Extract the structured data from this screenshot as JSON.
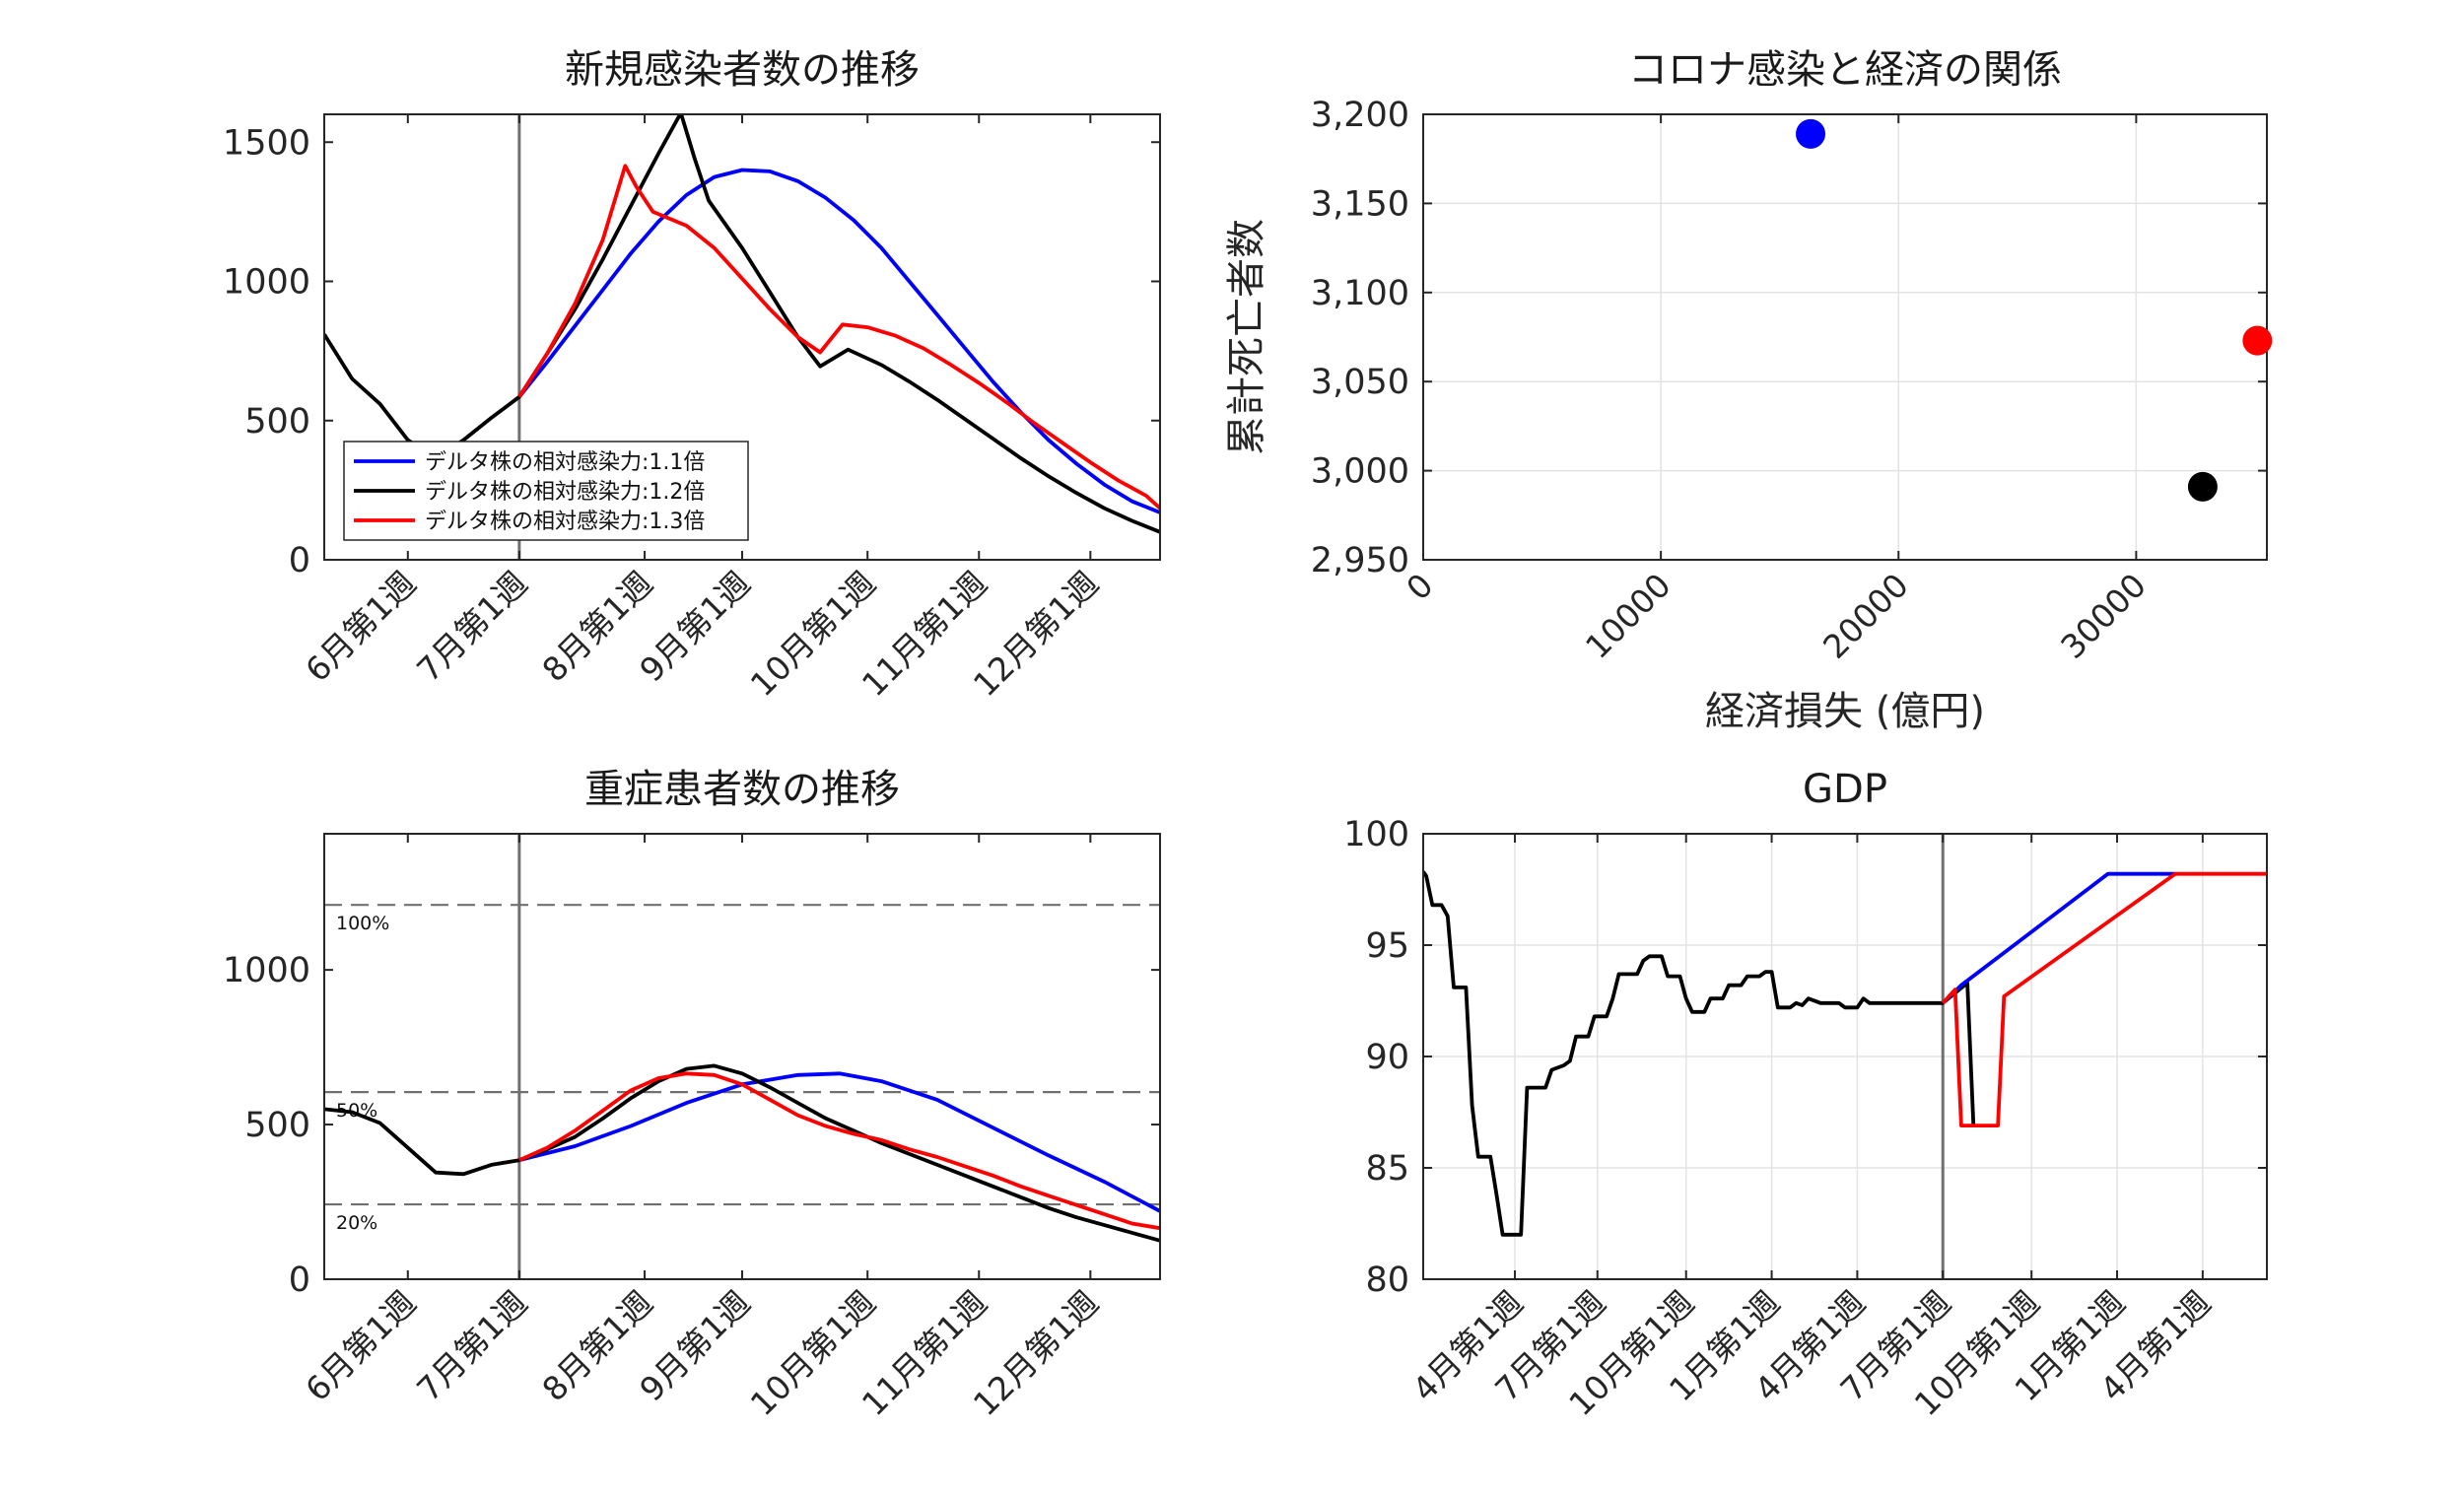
{
  "colors": {
    "blue": "#0000ff",
    "black": "#000000",
    "red": "#ff0000",
    "axis": "#262626",
    "guide": "#707070"
  },
  "chart_data": [
    {
      "type": "line",
      "title": "新規感染者数の推移",
      "xlabel": "",
      "ylabel": "",
      "week_axis": [
        0,
        30
      ],
      "ylim": [
        0,
        1600
      ],
      "yticks": [
        0,
        500,
        1000,
        1500
      ],
      "ytick_labels": [
        "0",
        "500",
        "1000",
        "1500"
      ],
      "xticks": [
        {
          "week": 3,
          "label": "6月第1週"
        },
        {
          "week": 7,
          "label": "7月第1週"
        },
        {
          "week": 11.5,
          "label": "8月第1週"
        },
        {
          "week": 15,
          "label": "9月第1週"
        },
        {
          "week": 19.5,
          "label": "10月第1週"
        },
        {
          "week": 23.5,
          "label": "11月第1週"
        },
        {
          "week": 27.5,
          "label": "12月第1週"
        }
      ],
      "vline_week": 7,
      "grid": false,
      "legend_position": "bottom-left",
      "series": [
        {
          "name": "デルタ株の相対感染力:1.1倍",
          "color": "blue",
          "points": [
            [
              7,
              585
            ],
            [
              8,
              710
            ],
            [
              9,
              840
            ],
            [
              10,
              970
            ],
            [
              11,
              1100
            ],
            [
              12,
              1215
            ],
            [
              13,
              1310
            ],
            [
              14,
              1375
            ],
            [
              15,
              1400
            ],
            [
              16,
              1395
            ],
            [
              17,
              1360
            ],
            [
              18,
              1300
            ],
            [
              19,
              1220
            ],
            [
              20,
              1120
            ],
            [
              21,
              1000
            ],
            [
              22,
              880
            ],
            [
              23,
              760
            ],
            [
              24,
              640
            ],
            [
              25,
              530
            ],
            [
              26,
              430
            ],
            [
              27,
              345
            ],
            [
              28,
              270
            ],
            [
              29,
              210
            ],
            [
              30,
              170
            ]
          ]
        },
        {
          "name": "デルタ株の相対感染力:1.2倍",
          "color": "black",
          "points": [
            [
              0,
              810
            ],
            [
              1,
              650
            ],
            [
              2,
              560
            ],
            [
              3,
              430
            ],
            [
              4,
              365
            ],
            [
              5,
              430
            ],
            [
              6,
              510
            ],
            [
              7,
              585
            ],
            [
              8,
              740
            ],
            [
              9,
              900
            ],
            [
              10,
              1080
            ],
            [
              11,
              1270
            ],
            [
              12,
              1460
            ],
            [
              12.8,
              1605
            ],
            [
              13.3,
              1440
            ],
            [
              13.8,
              1290
            ],
            [
              15,
              1120
            ],
            [
              16,
              960
            ],
            [
              17,
              800
            ],
            [
              17.8,
              695
            ],
            [
              18.8,
              755
            ],
            [
              20,
              700
            ],
            [
              21,
              640
            ],
            [
              22,
              575
            ],
            [
              23,
              505
            ],
            [
              24,
              435
            ],
            [
              25,
              365
            ],
            [
              26,
              300
            ],
            [
              27,
              240
            ],
            [
              28,
              185
            ],
            [
              29,
              140
            ],
            [
              30,
              100
            ]
          ]
        },
        {
          "name": "デルタ株の相対感染力:1.3倍",
          "color": "red",
          "points": [
            [
              7,
              585
            ],
            [
              8,
              740
            ],
            [
              9,
              920
            ],
            [
              10,
              1150
            ],
            [
              10.8,
              1415
            ],
            [
              11.2,
              1340
            ],
            [
              11.8,
              1250
            ],
            [
              13,
              1200
            ],
            [
              14,
              1120
            ],
            [
              15,
              1010
            ],
            [
              16,
              900
            ],
            [
              17,
              800
            ],
            [
              17.8,
              745
            ],
            [
              18.6,
              845
            ],
            [
              19.5,
              835
            ],
            [
              20.5,
              805
            ],
            [
              21.5,
              760
            ],
            [
              22.5,
              700
            ],
            [
              23.5,
              635
            ],
            [
              24.5,
              565
            ],
            [
              25.5,
              490
            ],
            [
              26.5,
              420
            ],
            [
              27.5,
              350
            ],
            [
              28.5,
              285
            ],
            [
              29.5,
              230
            ],
            [
              30,
              185
            ]
          ]
        }
      ]
    },
    {
      "type": "scatter",
      "title": "コロナ感染と経済の関係",
      "xlabel": "経済損失 (億円)",
      "ylabel": "累計死亡者数",
      "xlim": [
        0,
        35500
      ],
      "ylim": [
        2950,
        3200
      ],
      "xticks": [
        0,
        10000,
        20000,
        30000
      ],
      "xtick_labels": [
        "0",
        "10000",
        "20000",
        "30000"
      ],
      "yticks": [
        2950,
        3000,
        3050,
        3100,
        3150,
        3200
      ],
      "ytick_labels": [
        "2,950",
        "3,000",
        "3,050",
        "3,100",
        "3,150",
        "3,200"
      ],
      "grid": true,
      "points": [
        {
          "x": 16300,
          "y": 3189,
          "color": "blue"
        },
        {
          "x": 35100,
          "y": 3073,
          "color": "red"
        },
        {
          "x": 32800,
          "y": 2991,
          "color": "black"
        }
      ]
    },
    {
      "type": "line",
      "title": "重症患者数の推移",
      "xlabel": "",
      "ylabel": "",
      "week_axis": [
        0,
        30
      ],
      "ylim": [
        0,
        1440
      ],
      "yticks": [
        0,
        500,
        1000
      ],
      "ytick_labels": [
        "0",
        "500",
        "1000"
      ],
      "xticks": [
        {
          "week": 3,
          "label": "6月第1週"
        },
        {
          "week": 7,
          "label": "7月第1週"
        },
        {
          "week": 11.5,
          "label": "8月第1週"
        },
        {
          "week": 15,
          "label": "9月第1週"
        },
        {
          "week": 19.5,
          "label": "10月第1週"
        },
        {
          "week": 23.5,
          "label": "11月第1週"
        },
        {
          "week": 27.5,
          "label": "12月第1週"
        }
      ],
      "vline_week": 7,
      "reference_lines": [
        {
          "value": 1210,
          "label": "100%"
        },
        {
          "value": 605,
          "label": "50%"
        },
        {
          "value": 242,
          "label": "20%"
        }
      ],
      "grid": false,
      "series": [
        {
          "color": "blue",
          "points": [
            [
              7,
              385
            ],
            [
              9,
              430
            ],
            [
              11,
              495
            ],
            [
              13,
              570
            ],
            [
              15,
              630
            ],
            [
              17,
              660
            ],
            [
              18.5,
              665
            ],
            [
              20,
              640
            ],
            [
              22,
              580
            ],
            [
              24,
              490
            ],
            [
              26,
              400
            ],
            [
              28,
              315
            ],
            [
              30,
              220
            ]
          ]
        },
        {
          "color": "black",
          "points": [
            [
              0,
              550
            ],
            [
              1,
              540
            ],
            [
              2,
              505
            ],
            [
              3,
              425
            ],
            [
              4,
              345
            ],
            [
              5,
              340
            ],
            [
              6,
              370
            ],
            [
              7,
              385
            ],
            [
              8,
              420
            ],
            [
              9,
              460
            ],
            [
              10,
              520
            ],
            [
              11,
              585
            ],
            [
              12,
              640
            ],
            [
              13,
              680
            ],
            [
              14,
              690
            ],
            [
              15,
              665
            ],
            [
              16,
              620
            ],
            [
              17,
              570
            ],
            [
              18,
              520
            ],
            [
              19,
              480
            ],
            [
              20,
              440
            ],
            [
              21,
              405
            ],
            [
              22,
              370
            ],
            [
              23,
              335
            ],
            [
              24,
              300
            ],
            [
              25,
              265
            ],
            [
              26,
              230
            ],
            [
              27,
              200
            ],
            [
              28,
              175
            ],
            [
              29,
              150
            ],
            [
              30,
              125
            ]
          ]
        },
        {
          "color": "red",
          "points": [
            [
              7,
              385
            ],
            [
              8,
              425
            ],
            [
              9,
              480
            ],
            [
              10,
              545
            ],
            [
              11,
              610
            ],
            [
              12,
              650
            ],
            [
              13,
              665
            ],
            [
              14,
              660
            ],
            [
              15,
              630
            ],
            [
              16,
              580
            ],
            [
              17,
              530
            ],
            [
              18,
              495
            ],
            [
              19,
              470
            ],
            [
              20,
              450
            ],
            [
              21,
              420
            ],
            [
              22,
              395
            ],
            [
              23,
              365
            ],
            [
              24,
              335
            ],
            [
              25,
              300
            ],
            [
              26,
              270
            ],
            [
              27,
              240
            ],
            [
              28,
              210
            ],
            [
              29,
              180
            ],
            [
              30,
              165
            ]
          ]
        }
      ]
    },
    {
      "type": "line",
      "title": "GDP",
      "xlabel": "",
      "ylabel": "",
      "week_axis": [
        0,
        138
      ],
      "ylim": [
        80,
        100
      ],
      "yticks": [
        80,
        85,
        90,
        95,
        100
      ],
      "ytick_labels": [
        "80",
        "85",
        "90",
        "95",
        "100"
      ],
      "xticks": [
        {
          "week": 15,
          "label": "4月第1週"
        },
        {
          "week": 28.5,
          "label": "7月第1週"
        },
        {
          "week": 43,
          "label": "10月第1週"
        },
        {
          "week": 57,
          "label": "1月第1週"
        },
        {
          "week": 71,
          "label": "4月第1週"
        },
        {
          "week": 85,
          "label": "7月第1週"
        },
        {
          "week": 99.5,
          "label": "10月第1週"
        },
        {
          "week": 113.5,
          "label": "1月第1週"
        },
        {
          "week": 127.5,
          "label": "4月第1週"
        }
      ],
      "vline_week": 85,
      "grid": true,
      "series": [
        {
          "color": "black",
          "points": [
            [
              0,
              98.3
            ],
            [
              0.5,
              98.1
            ],
            [
              1.5,
              96.8
            ],
            [
              3,
              96.8
            ],
            [
              4,
              96.3
            ],
            [
              5,
              93.1
            ],
            [
              7,
              93.1
            ],
            [
              8,
              87.8
            ],
            [
              9,
              85.5
            ],
            [
              11,
              85.5
            ],
            [
              12,
              83.8
            ],
            [
              13,
              82.0
            ],
            [
              16,
              82.0
            ],
            [
              17,
              88.6
            ],
            [
              20,
              88.6
            ],
            [
              21,
              89.4
            ],
            [
              23,
              89.6
            ],
            [
              24,
              89.8
            ],
            [
              25,
              90.9
            ],
            [
              27,
              90.9
            ],
            [
              28,
              91.8
            ],
            [
              30,
              91.8
            ],
            [
              31,
              92.6
            ],
            [
              32,
              93.7
            ],
            [
              35,
              93.7
            ],
            [
              36,
              94.3
            ],
            [
              37,
              94.5
            ],
            [
              39,
              94.5
            ],
            [
              40,
              93.6
            ],
            [
              42,
              93.6
            ],
            [
              43,
              92.6
            ],
            [
              44,
              92.0
            ],
            [
              46,
              92.0
            ],
            [
              47,
              92.6
            ],
            [
              49,
              92.6
            ],
            [
              50,
              93.2
            ],
            [
              52,
              93.2
            ],
            [
              53,
              93.6
            ],
            [
              55,
              93.6
            ],
            [
              56,
              93.8
            ],
            [
              57,
              93.8
            ],
            [
              58,
              92.2
            ],
            [
              60,
              92.2
            ],
            [
              61,
              92.4
            ],
            [
              62,
              92.3
            ],
            [
              63,
              92.6
            ],
            [
              65,
              92.4
            ],
            [
              68,
              92.4
            ],
            [
              69,
              92.2
            ],
            [
              71,
              92.2
            ],
            [
              72,
              92.6
            ],
            [
              73,
              92.4
            ],
            [
              85,
              92.4
            ],
            [
              89,
              93.3
            ],
            [
              90,
              86.9
            ]
          ]
        },
        {
          "color": "blue",
          "points": [
            [
              85,
              92.4
            ],
            [
              88,
              93.2
            ],
            [
              112,
              98.2
            ],
            [
              123,
              98.2
            ]
          ]
        },
        {
          "color": "red",
          "points": [
            [
              85,
              92.4
            ],
            [
              87,
              93.0
            ],
            [
              88,
              86.9
            ],
            [
              94,
              86.9
            ],
            [
              95,
              92.7
            ],
            [
              123,
              98.2
            ],
            [
              138,
              98.2
            ]
          ]
        }
      ]
    }
  ]
}
